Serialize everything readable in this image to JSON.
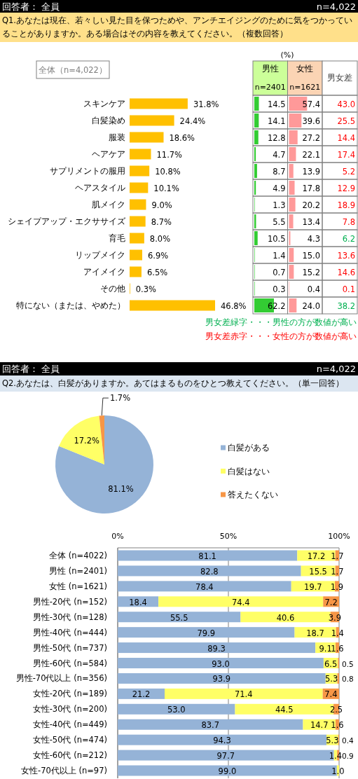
{
  "chart_data": [
    {
      "type": "bar",
      "orientation": "horizontal",
      "title": "Q1.あなたは現在、若々しい見た目を保つためや、アンチエイジングのために気をつかっていることがありますか。ある場合はその内容を教えてください。（複数回答）",
      "annotations": [
        "回答者： 全員",
        "n=4,022",
        "全体（n=4,022）"
      ],
      "categories": [
        "スキンケア",
        "白髪染め",
        "服装",
        "ヘアケア",
        "サプリメントの服用",
        "ヘアスタイル",
        "肌メイク",
        "シェイプアップ・エクササイズ",
        "育毛",
        "リップメイク",
        "アイメイク",
        "その他",
        "特にない（または、やめた）"
      ],
      "values": [
        31.8,
        24.4,
        18.6,
        11.7,
        10.8,
        10.1,
        9.0,
        8.7,
        8.0,
        6.9,
        6.5,
        0.3,
        46.8
      ],
      "color": "#ffc000",
      "value_labels": [
        "31.8%",
        "24.4%",
        "18.6%",
        "11.7%",
        "10.8%",
        "10.1%",
        "9.0%",
        "8.7%",
        "8.0%",
        "6.9%",
        "6.5%",
        "0.3%",
        "46.8%"
      ]
    },
    {
      "type": "bar",
      "orientation": "horizontal",
      "title": "男性",
      "subtitle": "n=2401",
      "annotations": [
        "(%)"
      ],
      "categories": [
        null,
        null,
        null,
        null,
        null,
        null,
        null,
        null,
        null,
        null,
        null,
        null,
        null
      ],
      "color": "#33cc33",
      "values": [
        14.5,
        14.1,
        12.8,
        4.7,
        8.7,
        4.9,
        1.3,
        5.5,
        10.5,
        1.4,
        0.7,
        0.3,
        62.2
      ],
      "value_labels": [
        "14.5",
        "14.1",
        "12.8",
        "4.7",
        "8.7",
        "4.9",
        "1.3",
        "5.5",
        "10.5",
        "1.4",
        "0.7",
        "0.3",
        "62.2"
      ]
    },
    {
      "type": "bar",
      "orientation": "horizontal",
      "title": "女性",
      "subtitle": "n=1621",
      "categories": [
        null,
        null,
        null,
        null,
        null,
        null,
        null,
        null,
        null,
        null,
        null,
        null,
        null
      ],
      "color": "#ff9999",
      "values": [
        57.4,
        39.6,
        27.2,
        22.1,
        13.9,
        17.8,
        20.2,
        13.4,
        4.3,
        15.0,
        15.2,
        0.4,
        24.0
      ],
      "value_labels": [
        "57.4",
        "39.6",
        "27.2",
        "22.1",
        "13.9",
        "17.8",
        "20.2",
        "13.4",
        "4.3",
        "15.0",
        "15.2",
        "0.4",
        "24.0"
      ]
    },
    {
      "type": "other",
      "title": "男女差",
      "annotations": [
        "43.0",
        "25.5",
        "14.4",
        "17.4",
        "5.2",
        "12.9",
        "18.9",
        "7.8",
        "6.2",
        "13.6",
        "14.6",
        "0.1",
        "38.2",
        "男女差緑字・・・男性の方が数値が高い",
        "男女差赤字・・・女性の方が数値が高い"
      ],
      "categories": [
        null,
        null,
        null,
        null,
        null,
        null,
        null,
        null,
        null,
        null,
        null,
        null,
        null
      ],
      "colors": [
        "#ff0000",
        "#ff0000",
        "#ff0000",
        "#ff0000",
        "#ff0000",
        "#ff0000",
        "#ff0000",
        "#ff0000",
        "#00b050",
        "#ff0000",
        "#ff0000",
        "#ff0000",
        "#00b050"
      ]
    },
    {
      "type": "pie",
      "title": "Q2.あなたは、白髪がありますか。あてはまるものをひとつ教えてください。（単一回答）",
      "annotations": [
        "回答者： 全員",
        "n=4,022"
      ],
      "categories": [
        "白髪がある",
        "白髪はない",
        "答えたくない"
      ],
      "values": [
        81.1,
        17.2,
        1.7
      ],
      "colors": [
        "#95b3d7",
        "#ffff66",
        "#f79646"
      ],
      "value_labels": [
        "81.1%",
        "17.2%",
        "1.7%"
      ],
      "legend": "right"
    },
    {
      "type": "bar",
      "orientation": "horizontal",
      "stacked": true,
      "xlim": [
        0,
        100
      ],
      "xticks": [
        {
          "value": 0,
          "label": "0%"
        },
        {
          "value": 50,
          "label": "50%"
        },
        {
          "value": 100,
          "label": "100%"
        }
      ],
      "grid": "x",
      "categories": [
        "全体 (n=4022)",
        "男性 (n=2401)",
        "女性 (n=1621)",
        "男性-20代 (n=152)",
        "男性-30代 (n=128)",
        "男性-40代 (n=444)",
        "男性-50代 (n=737)",
        "男性-60代 (n=584)",
        "男性-70代以上 (n=356)",
        "女性-20代 (n=189)",
        "女性-30代 (n=200)",
        "女性-40代 (n=449)",
        "女性-50代 (n=474)",
        "女性-60代 (n=212)",
        "女性-70代以上 (n=97)"
      ],
      "series": [
        {
          "color": "#95b3d7",
          "values": [
            81.1,
            82.8,
            78.4,
            18.4,
            55.5,
            79.9,
            89.3,
            93.0,
            93.9,
            21.2,
            53.0,
            83.7,
            94.3,
            97.7,
            99.0
          ],
          "value_labels": [
            "81.1",
            "82.8",
            "78.4",
            "18.4",
            "55.5",
            "79.9",
            "89.3",
            "93.0",
            "93.9",
            "21.2",
            "53.0",
            "83.7",
            "94.3",
            "97.7",
            "99.0"
          ]
        },
        {
          "color": "#ffff66",
          "values": [
            17.2,
            15.5,
            19.7,
            74.4,
            40.6,
            18.7,
            9.1,
            6.5,
            5.3,
            71.4,
            44.5,
            14.7,
            5.3,
            1.4,
            1.0
          ],
          "value_labels": [
            "17.2",
            "15.5",
            "19.7",
            "74.4",
            "40.6",
            "18.7",
            "9.1",
            "6.5",
            "5.3",
            "71.4",
            "44.5",
            "14.7",
            "5.3",
            "1.4",
            "1.0"
          ]
        },
        {
          "color": "#f79646",
          "values": [
            1.7,
            1.7,
            1.9,
            7.2,
            3.9,
            1.4,
            1.6,
            0.5,
            0.8,
            7.4,
            2.5,
            1.6,
            0.4,
            0.9,
            null
          ],
          "value_labels": [
            "1.7",
            "1.7",
            "1.9",
            "7.2",
            "3.9",
            "1.4",
            "1.6",
            "0.5",
            "0.8",
            "7.4",
            "2.5",
            "1.6",
            "0.4",
            "0.9",
            null
          ]
        }
      ]
    }
  ]
}
